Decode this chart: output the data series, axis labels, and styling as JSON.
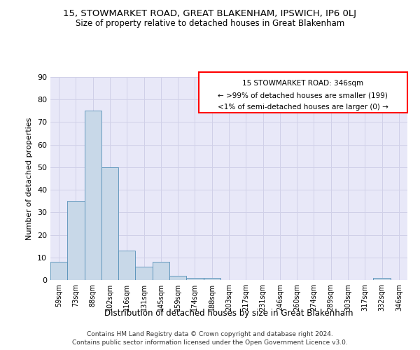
{
  "title": "15, STOWMARKET ROAD, GREAT BLAKENHAM, IPSWICH, IP6 0LJ",
  "subtitle": "Size of property relative to detached houses in Great Blakenham",
  "xlabel": "Distribution of detached houses by size in Great Blakenham",
  "ylabel": "Number of detached properties",
  "bin_labels": [
    "59sqm",
    "73sqm",
    "88sqm",
    "102sqm",
    "116sqm",
    "131sqm",
    "145sqm",
    "159sqm",
    "174sqm",
    "188sqm",
    "203sqm",
    "217sqm",
    "231sqm",
    "246sqm",
    "260sqm",
    "274sqm",
    "289sqm",
    "303sqm",
    "317sqm",
    "332sqm",
    "346sqm"
  ],
  "bar_heights": [
    8,
    35,
    75,
    50,
    13,
    6,
    8,
    2,
    1,
    1,
    0,
    0,
    0,
    0,
    0,
    0,
    0,
    0,
    0,
    1,
    0
  ],
  "bar_color": "#c8d8e8",
  "bar_edge_color": "#5590b8",
  "ylim": [
    0,
    90
  ],
  "yticks": [
    0,
    10,
    20,
    30,
    40,
    50,
    60,
    70,
    80,
    90
  ],
  "annotation_line1": "15 STOWMARKET ROAD: 346sqm",
  "annotation_line2": "← >99% of detached houses are smaller (199)",
  "annotation_line3": "<1% of semi-detached houses are larger (0) →",
  "annotation_border_color": "red",
  "grid_color": "#d0d0e8",
  "bg_color": "#e8e8f8",
  "footer_line1": "Contains HM Land Registry data © Crown copyright and database right 2024.",
  "footer_line2": "Contains public sector information licensed under the Open Government Licence v3.0."
}
